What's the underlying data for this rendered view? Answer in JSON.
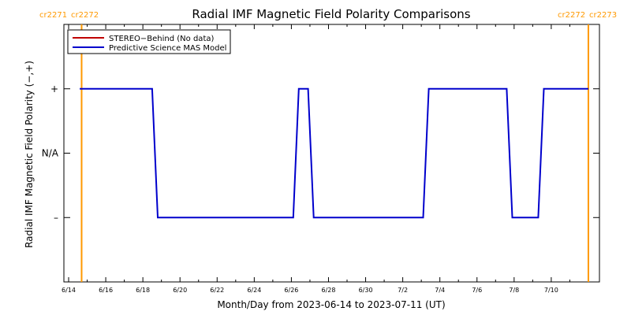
{
  "chart_data": {
    "type": "line",
    "title": "Radial IMF Magnetic Field Polarity Comparisons",
    "xlabel": "Month/Day from 2023-06-14 to 2023-07-11 (UT)",
    "ylabel": "Radial IMF Magnetic Field Polarity (−,+)",
    "x_range_days": [
      0,
      28.2
    ],
    "ylim": [
      -2,
      2
    ],
    "x_ticks": [
      {
        "day": 0,
        "label": "6/14"
      },
      {
        "day": 2,
        "label": "6/16"
      },
      {
        "day": 4,
        "label": "6/18"
      },
      {
        "day": 6,
        "label": "6/20"
      },
      {
        "day": 8,
        "label": "6/22"
      },
      {
        "day": 10,
        "label": "6/24"
      },
      {
        "day": 12,
        "label": "6/26"
      },
      {
        "day": 14,
        "label": "6/28"
      },
      {
        "day": 16,
        "label": "6/30"
      },
      {
        "day": 18,
        "label": "7/2"
      },
      {
        "day": 20,
        "label": "7/4"
      },
      {
        "day": 22,
        "label": "7/6"
      },
      {
        "day": 24,
        "label": "7/8"
      },
      {
        "day": 26,
        "label": "7/10"
      }
    ],
    "y_ticks": [
      {
        "value": 1,
        "label": "+"
      },
      {
        "value": 0,
        "label": "N/A"
      },
      {
        "value": -1,
        "label": "–"
      }
    ],
    "carrington_markers": [
      {
        "day": 0.7,
        "left_label": "cr2271",
        "right_label": "cr2272",
        "label_side": "left",
        "color": "#ff9900"
      },
      {
        "day": 28.0,
        "left_label": "cr2272",
        "right_label": "cr2273",
        "label_side": "right",
        "color": "#ff9900"
      }
    ],
    "legend": {
      "position": "top-left",
      "entries": [
        {
          "label": "STEREO−Behind (No data)",
          "color": "#c00000"
        },
        {
          "label": "Predictive Science MAS Model",
          "color": "#0000cc"
        }
      ]
    },
    "series": [
      {
        "name": "Predictive Science MAS Model",
        "color": "#0000cc",
        "points": [
          [
            0.6,
            1
          ],
          [
            4.5,
            1
          ],
          [
            4.8,
            -1
          ],
          [
            12.1,
            -1
          ],
          [
            12.4,
            1
          ],
          [
            12.9,
            1
          ],
          [
            13.2,
            -1
          ],
          [
            19.1,
            -1
          ],
          [
            19.4,
            1
          ],
          [
            23.6,
            1
          ],
          [
            23.9,
            -1
          ],
          [
            25.3,
            -1
          ],
          [
            25.6,
            1
          ],
          [
            28.0,
            1
          ]
        ]
      }
    ]
  }
}
